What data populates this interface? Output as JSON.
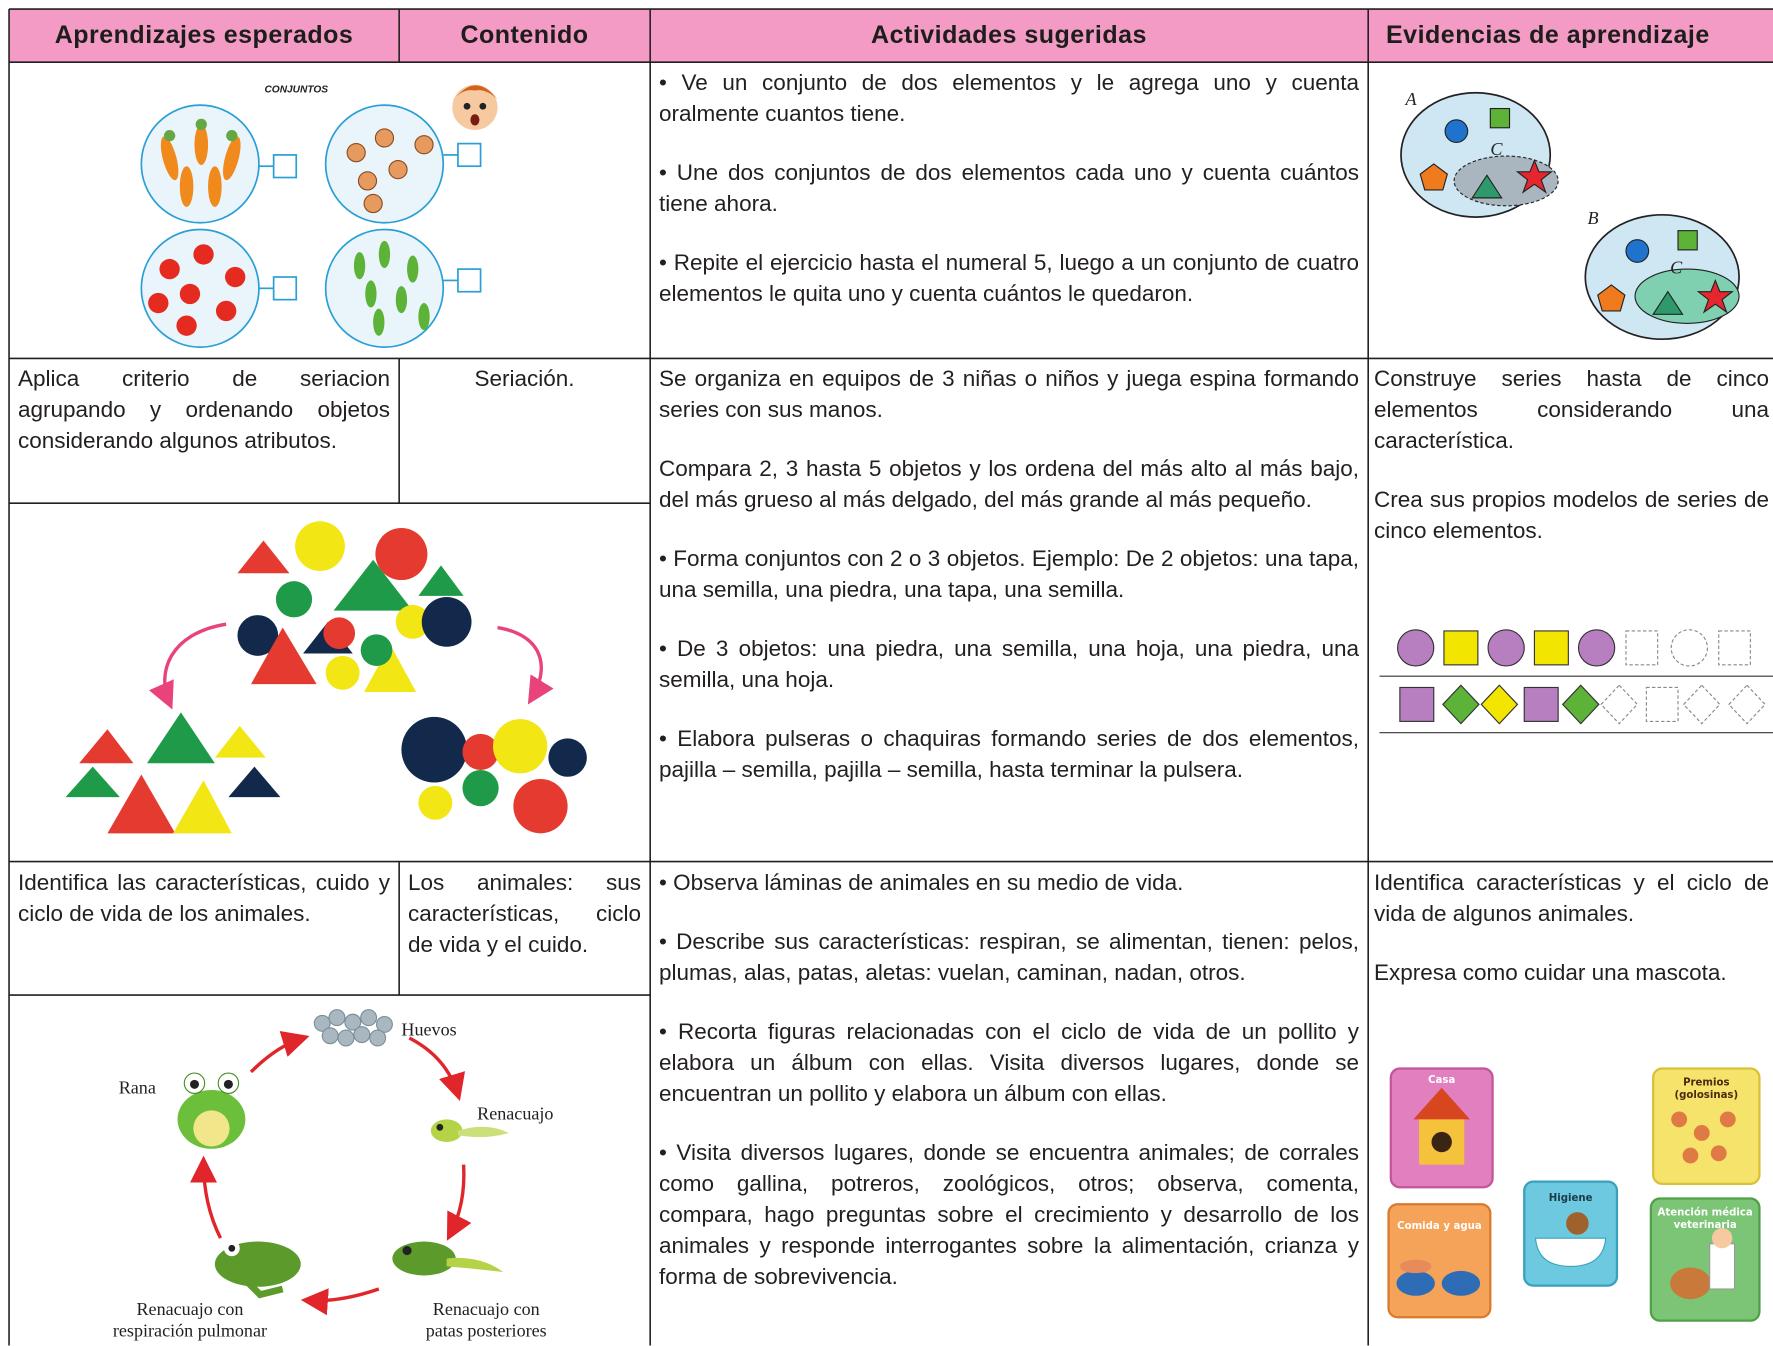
{
  "header": [
    "Aprendizajes esperados",
    "Contenido",
    "Actividades sugeridas",
    "Evidencias de aprendizaje"
  ],
  "rows": [
    {
      "illustration_title": "CONJUNTOS",
      "actividades": [
        "• Ve un conjunto de dos elementos y le agrega uno y cuenta oralmente cuantos tiene.",
        "• Une dos conjuntos de dos elementos cada uno y cuenta cuántos tiene ahora.",
        "• Repite el ejercicio hasta el numeral 5, luego a un conjunto de cuatro elementos le quita uno y cuenta cuántos le quedaron."
      ],
      "evidencias_labels": [
        "A",
        "C",
        "B",
        "C"
      ]
    },
    {
      "aprendizaje": "Aplica criterio de seriacion agrupando y ordenando objetos considerando algunos atributos.",
      "contenido": "Seriación.",
      "actividades": [
        "Se organiza en equipos de 3 niñas o niños y juega espina formando series con sus manos.",
        "Compara 2, 3 hasta 5 objetos y los ordena del más alto al más bajo, del más grueso al más delgado, del más grande al más pequeño.",
        "• Forma conjuntos con 2 o 3 objetos. Ejemplo: De 2 objetos: una tapa, una semilla, una piedra, una tapa, una semilla.",
        "• De 3 objetos: una piedra, una semilla, una hoja, una piedra, una semilla, una hoja.",
        "• Elabora pulseras o chaquiras formando series de dos elementos, pajilla – semilla, pajilla – semilla, hasta terminar la pulsera."
      ],
      "evidencias": [
        "Construye series hasta de cinco elementos considerando una característica.",
        "Crea sus propios modelos de series de cinco elementos."
      ]
    },
    {
      "aprendizaje": "Identifica las características, cuido y ciclo de vida de los animales.",
      "contenido": "Los animales: sus características, ciclo de vida y el cuido.",
      "actividades": [
        "• Observa láminas de animales en su medio de vida.",
        "• Describe sus características: respiran, se alimentan, tienen: pelos, plumas, alas, patas, aletas: vuelan, caminan, nadan, otros.",
        "• Recorta figuras relacionadas con el ciclo de vida de un pollito y elabora un álbum con ellas. Visita diversos lugares, donde se encuentran un pollito y elabora un álbum con ellas.",
        "• Visita diversos lugares, donde se encuentra animales; de corrales como gallina, potreros, zoológicos, otros; observa, comenta, compara, hago preguntas sobre el crecimiento y desarrollo de los animales y responde interrogantes sobre la alimentación, crianza y forma de sobrevivencia."
      ],
      "evidencias": [
        "Identifica características y el ciclo de vida de algunos animales.",
        "Expresa como cuidar una mascota."
      ],
      "cycle_labels": [
        [
          "Huevos"
        ],
        [
          "Rana"
        ],
        [
          "Renacuajo"
        ],
        [
          "Renacuajo con",
          "patas posteriores"
        ],
        [
          "Renacuajo con",
          "respiración pulmonar"
        ]
      ],
      "pet_cards": [
        [
          "Casa"
        ],
        [
          "Premios",
          "(golosinas)"
        ],
        [
          "Higiene"
        ],
        [
          "Comida y agua"
        ],
        [
          "Atención médica",
          "veterinaria"
        ]
      ]
    }
  ]
}
